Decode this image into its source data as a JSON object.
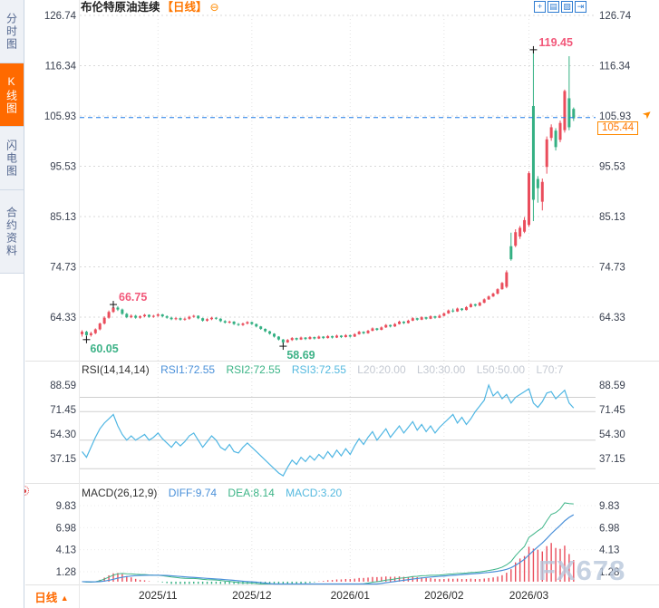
{
  "header": {
    "title": "布伦特原油连续",
    "period_tag": "【日线】",
    "collapse_glyph": "⊖"
  },
  "toolbar": {
    "icons": [
      {
        "name": "crosshair-icon",
        "glyph": "+"
      },
      {
        "name": "grid-chart-icon",
        "glyph": "▤"
      },
      {
        "name": "trend-chart-icon",
        "glyph": "▨"
      },
      {
        "name": "pop-out-icon",
        "glyph": "⇥"
      }
    ]
  },
  "sidebar": {
    "tabs": [
      {
        "label": "分时图",
        "active": false
      },
      {
        "label": "K线图",
        "active": true
      },
      {
        "label": "闪电图",
        "active": false
      },
      {
        "label": "合约资料",
        "active": false
      }
    ]
  },
  "rsi_header": {
    "name": "RSI(14,14,14)",
    "rsi1": "RSI1:72.55",
    "rsi2": "RSI2:72.55",
    "rsi3": "RSI3:72.55",
    "l20": "L20:20.00",
    "l30": "L30:30.00",
    "l50": "L50:50.00",
    "l70": "L70:7"
  },
  "macd_header": {
    "name": "MACD(26,12,9)",
    "diff": "DIFF:9.74",
    "dea": "DEA:8.14",
    "macd": "MACD:3.20"
  },
  "price_tag": {
    "value": "105.44",
    "arrow": "➤"
  },
  "footer": {
    "period": "日线",
    "arrow": "▲"
  },
  "watermark": "FX678",
  "colors": {
    "up": "#ea4d5c",
    "down": "#34b083",
    "accent_orange": "#ff6a00",
    "price_line_blue": "#1e7ce8",
    "rsi_line": "#4fb6e3",
    "diff_line": "#4a90d9",
    "dea_line": "#3cb487"
  },
  "chart_data": {
    "type": "candlestick",
    "main": {
      "axis_labels": [
        126.74,
        116.34,
        105.93,
        95.53,
        85.13,
        74.73,
        64.33
      ],
      "current_price": 105.44,
      "price_line_value": 105.6,
      "months": [
        {
          "label": "2025/11",
          "index": 17
        },
        {
          "label": "2025/12",
          "index": 38
        },
        {
          "label": "2026/01",
          "index": 60
        },
        {
          "label": "2026/02",
          "index": 81
        },
        {
          "label": "2026/03",
          "index": 100
        }
      ],
      "annotations": [
        {
          "index": 1,
          "side": "low",
          "text": "60.05",
          "color": "#3db287"
        },
        {
          "index": 7,
          "side": "high",
          "text": "66.75",
          "color": "#f2587a"
        },
        {
          "index": 45,
          "side": "low",
          "text": "58.69",
          "color": "#3db287"
        },
        {
          "index": 101,
          "side": "high",
          "text": "119.45",
          "color": "#f2587a"
        }
      ],
      "candles": [
        [
          60.8,
          61.6,
          60.3,
          61.3
        ],
        [
          61.3,
          61.5,
          60.05,
          60.6
        ],
        [
          60.6,
          61.3,
          60.3,
          61.0
        ],
        [
          61.0,
          62.0,
          60.8,
          61.8
        ],
        [
          61.8,
          63.2,
          61.6,
          63.0
        ],
        [
          63.0,
          64.5,
          62.8,
          64.2
        ],
        [
          64.2,
          65.7,
          64.0,
          65.4
        ],
        [
          65.4,
          66.75,
          65.2,
          66.3
        ],
        [
          66.3,
          66.6,
          65.6,
          65.9
        ],
        [
          65.9,
          66.1,
          64.8,
          65.0
        ],
        [
          65.0,
          65.2,
          64.1,
          64.3
        ],
        [
          64.3,
          64.9,
          64.1,
          64.6
        ],
        [
          64.6,
          64.8,
          64.0,
          64.2
        ],
        [
          64.2,
          64.7,
          64.0,
          64.5
        ],
        [
          64.5,
          65.0,
          64.3,
          64.8
        ],
        [
          64.8,
          64.9,
          64.2,
          64.4
        ],
        [
          64.4,
          64.8,
          64.2,
          64.6
        ],
        [
          64.6,
          65.1,
          64.4,
          64.9
        ],
        [
          64.9,
          65.0,
          64.3,
          64.5
        ],
        [
          64.5,
          64.7,
          64.0,
          64.2
        ],
        [
          64.2,
          64.4,
          63.7,
          63.9
        ],
        [
          63.9,
          64.3,
          63.7,
          64.1
        ],
        [
          64.1,
          64.2,
          63.6,
          63.8
        ],
        [
          63.8,
          64.2,
          63.6,
          64.0
        ],
        [
          64.0,
          64.6,
          63.8,
          64.4
        ],
        [
          64.4,
          64.8,
          64.2,
          64.6
        ],
        [
          64.6,
          64.7,
          63.9,
          64.1
        ],
        [
          64.1,
          64.2,
          63.4,
          63.6
        ],
        [
          63.6,
          64.1,
          63.4,
          63.9
        ],
        [
          63.9,
          64.4,
          63.7,
          64.2
        ],
        [
          64.2,
          64.3,
          63.8,
          64.0
        ],
        [
          64.0,
          64.1,
          63.3,
          63.5
        ],
        [
          63.5,
          63.7,
          63.0,
          63.2
        ],
        [
          63.2,
          63.6,
          63.0,
          63.4
        ],
        [
          63.4,
          63.5,
          62.7,
          62.9
        ],
        [
          62.9,
          63.1,
          62.5,
          62.7
        ],
        [
          62.7,
          63.2,
          62.5,
          63.0
        ],
        [
          63.0,
          63.5,
          62.8,
          63.3
        ],
        [
          63.3,
          63.4,
          62.7,
          62.9
        ],
        [
          62.9,
          63.0,
          62.2,
          62.4
        ],
        [
          62.4,
          62.5,
          61.7,
          61.9
        ],
        [
          61.9,
          62.0,
          61.2,
          61.4
        ],
        [
          61.4,
          61.5,
          60.7,
          60.9
        ],
        [
          60.9,
          61.0,
          60.1,
          60.3
        ],
        [
          60.3,
          60.4,
          59.5,
          59.7
        ],
        [
          59.7,
          59.8,
          58.69,
          59.1
        ],
        [
          59.1,
          59.8,
          59.0,
          59.6
        ],
        [
          59.6,
          60.2,
          59.4,
          60.0
        ],
        [
          60.0,
          60.1,
          59.5,
          59.7
        ],
        [
          59.7,
          60.3,
          59.6,
          60.1
        ],
        [
          60.1,
          60.2,
          59.6,
          59.8
        ],
        [
          59.8,
          60.4,
          59.7,
          60.2
        ],
        [
          60.2,
          60.3,
          59.7,
          59.9
        ],
        [
          59.9,
          60.5,
          59.8,
          60.3
        ],
        [
          60.3,
          60.4,
          59.8,
          60.0
        ],
        [
          60.0,
          60.6,
          59.9,
          60.4
        ],
        [
          60.4,
          60.5,
          59.9,
          60.1
        ],
        [
          60.1,
          60.7,
          60.0,
          60.5
        ],
        [
          60.5,
          60.6,
          60.0,
          60.2
        ],
        [
          60.2,
          60.8,
          60.1,
          60.6
        ],
        [
          60.6,
          60.7,
          60.1,
          60.3
        ],
        [
          60.3,
          61.0,
          60.2,
          60.8
        ],
        [
          60.8,
          61.5,
          60.7,
          61.3
        ],
        [
          61.3,
          61.4,
          60.8,
          61.0
        ],
        [
          61.0,
          61.7,
          60.9,
          61.5
        ],
        [
          61.5,
          62.2,
          61.4,
          62.0
        ],
        [
          62.0,
          62.1,
          61.5,
          61.7
        ],
        [
          61.7,
          62.4,
          61.6,
          62.2
        ],
        [
          62.2,
          62.9,
          62.1,
          62.7
        ],
        [
          62.7,
          62.8,
          62.2,
          62.4
        ],
        [
          62.4,
          63.1,
          62.3,
          62.9
        ],
        [
          62.9,
          63.6,
          62.8,
          63.4
        ],
        [
          63.4,
          63.5,
          62.9,
          63.1
        ],
        [
          63.1,
          63.8,
          63.0,
          63.6
        ],
        [
          63.6,
          64.3,
          63.5,
          64.1
        ],
        [
          64.1,
          64.2,
          63.6,
          63.8
        ],
        [
          63.8,
          64.5,
          63.7,
          64.3
        ],
        [
          64.3,
          64.4,
          63.8,
          64.0
        ],
        [
          64.0,
          64.7,
          63.9,
          64.5
        ],
        [
          64.5,
          64.6,
          64.0,
          64.2
        ],
        [
          64.2,
          64.9,
          64.1,
          64.6
        ],
        [
          64.6,
          65.3,
          64.5,
          65.1
        ],
        [
          65.1,
          65.9,
          65.0,
          65.7
        ],
        [
          65.7,
          66.1,
          65.3,
          65.5
        ],
        [
          65.5,
          66.3,
          65.4,
          66.1
        ],
        [
          66.1,
          66.2,
          65.6,
          65.8
        ],
        [
          65.8,
          66.6,
          65.7,
          66.4
        ],
        [
          66.4,
          67.2,
          66.3,
          67.0
        ],
        [
          67.0,
          67.1,
          66.5,
          66.7
        ],
        [
          66.7,
          67.5,
          66.6,
          67.3
        ],
        [
          67.3,
          68.2,
          67.2,
          68.0
        ],
        [
          68.0,
          68.8,
          67.9,
          68.6
        ],
        [
          68.6,
          69.4,
          68.5,
          69.2
        ],
        [
          69.2,
          70.3,
          69.0,
          70.1
        ],
        [
          70.1,
          71.6,
          70.0,
          71.4
        ],
        [
          70.6,
          74.0,
          70.3,
          73.6
        ],
        [
          79.0,
          81.8,
          76.0,
          76.3
        ],
        [
          79.1,
          82.5,
          78.8,
          81.9
        ],
        [
          81.0,
          83.2,
          80.5,
          82.8
        ],
        [
          82.0,
          85.0,
          81.7,
          84.4
        ],
        [
          83.4,
          94.5,
          83.0,
          94.1
        ],
        [
          108.0,
          119.45,
          84.2,
          88.6
        ],
        [
          92.9,
          93.5,
          88.0,
          91.0
        ],
        [
          88.2,
          93.0,
          86.4,
          92.3
        ],
        [
          95.4,
          101.7,
          94.0,
          101.1
        ],
        [
          101.4,
          104.2,
          100.8,
          103.6
        ],
        [
          102.9,
          103.4,
          98.8,
          99.5
        ],
        [
          101.0,
          105.0,
          100.5,
          104.5
        ],
        [
          103.0,
          111.4,
          102.5,
          111.1
        ],
        [
          109.6,
          118.3,
          103.0,
          103.6
        ],
        [
          107.4,
          107.7,
          104.9,
          105.44
        ]
      ]
    },
    "rsi": {
      "type": "line",
      "axis_labels": [
        88.59,
        71.45,
        54.3,
        37.15
      ],
      "levels": [
        80,
        70,
        50,
        30
      ],
      "values": [
        42,
        38,
        45,
        52,
        58,
        62,
        65,
        68,
        60,
        54,
        50,
        53,
        50,
        52,
        54,
        50,
        52,
        55,
        51,
        48,
        45,
        49,
        46,
        49,
        53,
        55,
        50,
        45,
        49,
        53,
        50,
        45,
        43,
        47,
        42,
        41,
        45,
        48,
        45,
        42,
        39,
        36,
        33,
        30,
        27,
        25,
        31,
        36,
        33,
        38,
        35,
        39,
        36,
        40,
        37,
        42,
        38,
        43,
        39,
        44,
        40,
        46,
        51,
        47,
        52,
        56,
        50,
        54,
        58,
        52,
        56,
        60,
        55,
        59,
        63,
        57,
        61,
        56,
        60,
        55,
        59,
        62,
        65,
        68,
        62,
        66,
        61,
        65,
        70,
        74,
        78,
        88.59,
        81,
        84,
        79,
        82,
        76,
        80,
        82,
        84,
        86,
        76,
        73,
        77,
        83,
        84,
        79,
        82,
        85,
        76,
        72.55
      ]
    },
    "macd": {
      "type": "macd",
      "params": [
        26,
        12,
        9
      ],
      "axis_labels": [
        9.83,
        6.98,
        4.13,
        1.28
      ],
      "headline": {
        "diff": 9.74,
        "dea": 8.14,
        "macd": 3.2
      }
    }
  }
}
